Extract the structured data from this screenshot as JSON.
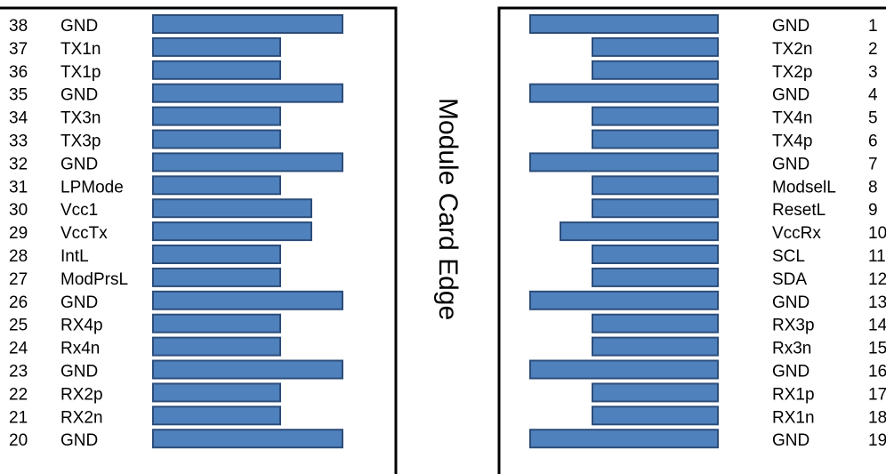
{
  "edge_label": "Module Card Edge",
  "colors": {
    "pad_fill": "#4f81bd",
    "pad_stroke": "#2c4d7a",
    "outline": "#000000"
  },
  "left_pins": [
    {
      "number": "38",
      "name": "GND",
      "pad": "long"
    },
    {
      "number": "37",
      "name": "TX1n",
      "pad": "short"
    },
    {
      "number": "36",
      "name": "TX1p",
      "pad": "short"
    },
    {
      "number": "35",
      "name": "GND",
      "pad": "long"
    },
    {
      "number": "34",
      "name": "TX3n",
      "pad": "short"
    },
    {
      "number": "33",
      "name": "TX3p",
      "pad": "short"
    },
    {
      "number": "32",
      "name": "GND",
      "pad": "long"
    },
    {
      "number": "31",
      "name": "LPMode",
      "pad": "short"
    },
    {
      "number": "30",
      "name": "Vcc1",
      "pad": "medium"
    },
    {
      "number": "29",
      "name": "VccTx",
      "pad": "medium"
    },
    {
      "number": "28",
      "name": "IntL",
      "pad": "short"
    },
    {
      "number": "27",
      "name": "ModPrsL",
      "pad": "short"
    },
    {
      "number": "26",
      "name": "GND",
      "pad": "long"
    },
    {
      "number": "25",
      "name": "RX4p",
      "pad": "short"
    },
    {
      "number": "24",
      "name": "Rx4n",
      "pad": "short"
    },
    {
      "number": "23",
      "name": "GND",
      "pad": "long"
    },
    {
      "number": "22",
      "name": "RX2p",
      "pad": "short"
    },
    {
      "number": "21",
      "name": "RX2n",
      "pad": "short"
    },
    {
      "number": "20",
      "name": "GND",
      "pad": "long"
    }
  ],
  "right_pins": [
    {
      "number": "1",
      "name": "GND",
      "pad": "long"
    },
    {
      "number": "2",
      "name": "TX2n",
      "pad": "short"
    },
    {
      "number": "3",
      "name": "TX2p",
      "pad": "short"
    },
    {
      "number": "4",
      "name": "GND",
      "pad": "long"
    },
    {
      "number": "5",
      "name": "TX4n",
      "pad": "short"
    },
    {
      "number": "6",
      "name": "TX4p",
      "pad": "short"
    },
    {
      "number": "7",
      "name": "GND",
      "pad": "long"
    },
    {
      "number": "8",
      "name": "ModselL",
      "pad": "short"
    },
    {
      "number": "9",
      "name": "ResetL",
      "pad": "short"
    },
    {
      "number": "10",
      "name": "VccRx",
      "pad": "medium"
    },
    {
      "number": "11",
      "name": "SCL",
      "pad": "short"
    },
    {
      "number": "12",
      "name": "SDA",
      "pad": "short"
    },
    {
      "number": "13",
      "name": "GND",
      "pad": "long"
    },
    {
      "number": "14",
      "name": "RX3p",
      "pad": "short"
    },
    {
      "number": "15",
      "name": "Rx3n",
      "pad": "short"
    },
    {
      "number": "16",
      "name": "GND",
      "pad": "long"
    },
    {
      "number": "17",
      "name": "RX1p",
      "pad": "short"
    },
    {
      "number": "18",
      "name": "RX1n",
      "pad": "short"
    },
    {
      "number": "19",
      "name": "GND",
      "pad": "long"
    }
  ]
}
